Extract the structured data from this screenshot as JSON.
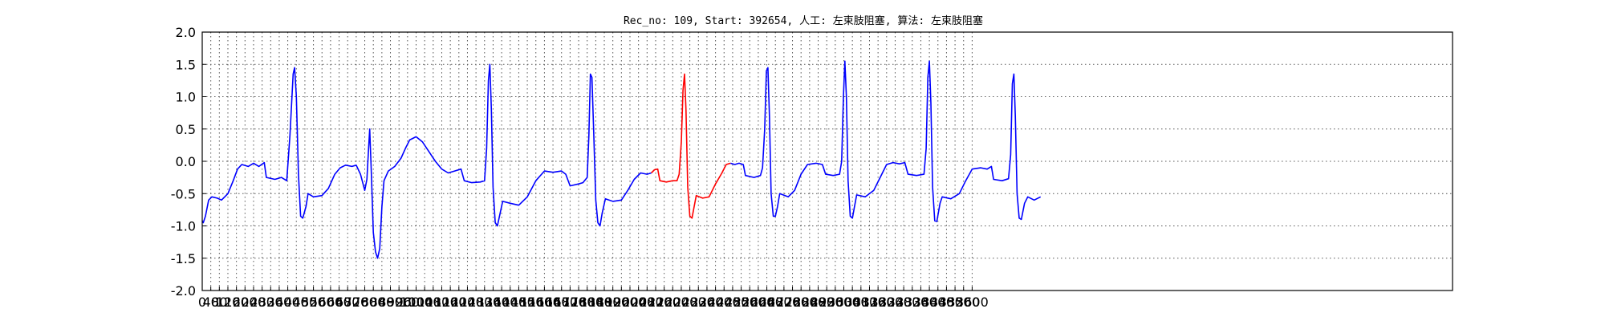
{
  "chart_data": {
    "type": "line",
    "title": "Rec_no: 109, Start: 392654, 人工: 左束肢阻塞, 算法: 左束肢阻塞",
    "xlabel": "",
    "ylabel": "",
    "xlim": [
      0,
      3900
    ],
    "ylim": [
      -2.0,
      2.0
    ],
    "grid": true,
    "x_ticks": [
      0,
      40,
      80,
      120,
      160,
      200,
      240,
      280,
      320,
      360,
      400,
      440,
      480,
      520,
      560,
      600,
      640,
      680,
      720,
      760,
      800,
      840,
      880,
      920,
      960,
      1000,
      1040,
      1080,
      1120,
      1160,
      1200,
      1240,
      1280,
      1320,
      1360,
      1400,
      1440,
      1480,
      1520,
      1560,
      1600,
      1640,
      1680,
      1720,
      1760,
      1800,
      1840,
      1880,
      1920,
      1960,
      2000,
      2040,
      2080,
      2120,
      2160,
      2200,
      2240,
      2280,
      2320,
      2360,
      2400,
      2440,
      2480,
      2520,
      2560,
      2600,
      2640,
      2680,
      2720,
      2760,
      2800,
      2840,
      2880,
      2920,
      2960,
      3000,
      3040,
      3080,
      3120,
      3160,
      3200,
      3240,
      3280,
      3320,
      3360,
      3400,
      3440,
      3480,
      3520,
      3560,
      3600
    ],
    "y_ticks": [
      "-2.0",
      "-1.5",
      "-1.0",
      "-0.5",
      "0.0",
      "0.5",
      "1.0",
      "1.5",
      "2.0"
    ],
    "series": [
      {
        "color": "#0000ff",
        "points": [
          [
            0,
            -0.92
          ],
          [
            5,
            -0.95
          ],
          [
            15,
            -0.85
          ],
          [
            30,
            -0.6
          ],
          [
            45,
            -0.55
          ],
          [
            70,
            -0.57
          ],
          [
            90,
            -0.6
          ],
          [
            120,
            -0.5
          ],
          [
            145,
            -0.3
          ],
          [
            165,
            -0.12
          ],
          [
            185,
            -0.05
          ],
          [
            215,
            -0.08
          ],
          [
            240,
            -0.03
          ],
          [
            265,
            -0.08
          ],
          [
            290,
            -0.02
          ],
          [
            300,
            -0.25
          ],
          [
            340,
            -0.28
          ],
          [
            370,
            -0.25
          ],
          [
            395,
            -0.3
          ],
          [
            410,
            0.4
          ],
          [
            425,
            1.35
          ],
          [
            432,
            1.45
          ],
          [
            440,
            1.0
          ],
          [
            450,
            -0.2
          ],
          [
            460,
            -0.85
          ],
          [
            470,
            -0.88
          ],
          [
            485,
            -0.7
          ],
          [
            495,
            -0.5
          ],
          [
            520,
            -0.55
          ],
          [
            560,
            -0.53
          ],
          [
            590,
            -0.42
          ],
          [
            620,
            -0.2
          ],
          [
            645,
            -0.1
          ],
          [
            670,
            -0.06
          ],
          [
            700,
            -0.08
          ],
          [
            720,
            -0.06
          ],
          [
            740,
            -0.2
          ],
          [
            760,
            -0.45
          ],
          [
            770,
            -0.28
          ],
          [
            778,
            0.2
          ],
          [
            783,
            0.5
          ],
          [
            790,
            -0.1
          ],
          [
            800,
            -1.1
          ],
          [
            810,
            -1.4
          ],
          [
            820,
            -1.5
          ],
          [
            830,
            -1.35
          ],
          [
            840,
            -0.7
          ],
          [
            850,
            -0.3
          ],
          [
            870,
            -0.15
          ],
          [
            900,
            -0.08
          ],
          [
            930,
            0.05
          ],
          [
            950,
            0.2
          ],
          [
            970,
            0.33
          ],
          [
            1000,
            0.38
          ],
          [
            1030,
            0.3
          ],
          [
            1060,
            0.15
          ],
          [
            1090,
            0.0
          ],
          [
            1120,
            -0.12
          ],
          [
            1150,
            -0.18
          ],
          [
            1180,
            -0.15
          ],
          [
            1210,
            -0.12
          ],
          [
            1225,
            -0.3
          ],
          [
            1260,
            -0.33
          ],
          [
            1300,
            -0.32
          ],
          [
            1320,
            -0.3
          ],
          [
            1330,
            0.2
          ],
          [
            1338,
            1.25
          ],
          [
            1345,
            1.5
          ],
          [
            1352,
            0.8
          ],
          [
            1360,
            -0.4
          ],
          [
            1370,
            -0.95
          ],
          [
            1380,
            -1.0
          ],
          [
            1390,
            -0.85
          ],
          [
            1405,
            -0.62
          ],
          [
            1440,
            -0.65
          ],
          [
            1480,
            -0.68
          ],
          [
            1520,
            -0.55
          ],
          [
            1560,
            -0.3
          ],
          [
            1600,
            -0.15
          ],
          [
            1640,
            -0.17
          ],
          [
            1680,
            -0.15
          ],
          [
            1700,
            -0.2
          ],
          [
            1720,
            -0.38
          ],
          [
            1760,
            -0.35
          ],
          [
            1780,
            -0.33
          ],
          [
            1800,
            -0.25
          ],
          [
            1808,
            0.4
          ],
          [
            1815,
            1.35
          ],
          [
            1822,
            1.3
          ],
          [
            1830,
            0.5
          ],
          [
            1840,
            -0.6
          ],
          [
            1850,
            -0.95
          ],
          [
            1860,
            -1.0
          ],
          [
            1870,
            -0.8
          ],
          [
            1885,
            -0.58
          ],
          [
            1920,
            -0.62
          ],
          [
            1960,
            -0.6
          ],
          [
            1990,
            -0.45
          ],
          [
            2020,
            -0.28
          ],
          [
            2050,
            -0.18
          ],
          [
            2080,
            -0.2
          ],
          [
            2100,
            -0.18
          ]
        ]
      },
      {
        "color": "#ff0000",
        "points": [
          [
            2100,
            -0.18
          ],
          [
            2115,
            -0.13
          ],
          [
            2130,
            -0.12
          ],
          [
            2140,
            -0.3
          ],
          [
            2170,
            -0.32
          ],
          [
            2200,
            -0.3
          ],
          [
            2220,
            -0.3
          ],
          [
            2230,
            -0.2
          ],
          [
            2240,
            0.3
          ],
          [
            2248,
            1.1
          ],
          [
            2255,
            1.35
          ],
          [
            2262,
            0.8
          ],
          [
            2270,
            -0.4
          ],
          [
            2280,
            -0.85
          ],
          [
            2290,
            -0.88
          ],
          [
            2300,
            -0.7
          ],
          [
            2310,
            -0.53
          ],
          [
            2340,
            -0.57
          ],
          [
            2370,
            -0.55
          ],
          [
            2400,
            -0.35
          ],
          [
            2430,
            -0.18
          ],
          [
            2450,
            -0.05
          ],
          [
            2470,
            -0.03
          ]
        ]
      },
      {
        "color": "#0000ff",
        "points": [
          [
            2470,
            -0.03
          ],
          [
            2490,
            -0.05
          ],
          [
            2510,
            -0.03
          ],
          [
            2530,
            -0.05
          ],
          [
            2540,
            -0.22
          ],
          [
            2580,
            -0.25
          ],
          [
            2610,
            -0.22
          ],
          [
            2620,
            -0.1
          ],
          [
            2630,
            0.5
          ],
          [
            2638,
            1.4
          ],
          [
            2645,
            1.45
          ],
          [
            2652,
            0.7
          ],
          [
            2660,
            -0.5
          ],
          [
            2670,
            -0.85
          ],
          [
            2680,
            -0.85
          ],
          [
            2690,
            -0.7
          ],
          [
            2700,
            -0.5
          ],
          [
            2740,
            -0.55
          ],
          [
            2770,
            -0.45
          ],
          [
            2800,
            -0.2
          ],
          [
            2830,
            -0.05
          ],
          [
            2870,
            -0.03
          ],
          [
            2900,
            -0.05
          ],
          [
            2915,
            -0.2
          ],
          [
            2950,
            -0.22
          ],
          [
            2980,
            -0.2
          ],
          [
            2990,
            0.0
          ],
          [
            2998,
            1.0
          ],
          [
            3005,
            1.55
          ],
          [
            3012,
            1.0
          ],
          [
            3020,
            -0.3
          ],
          [
            3030,
            -0.85
          ],
          [
            3040,
            -0.88
          ],
          [
            3050,
            -0.7
          ],
          [
            3060,
            -0.52
          ],
          [
            3100,
            -0.55
          ],
          [
            3140,
            -0.45
          ],
          [
            3170,
            -0.25
          ],
          [
            3200,
            -0.05
          ],
          [
            3230,
            -0.02
          ],
          [
            3260,
            -0.04
          ],
          [
            3285,
            -0.02
          ],
          [
            3300,
            -0.2
          ],
          [
            3340,
            -0.22
          ],
          [
            3375,
            -0.2
          ],
          [
            3385,
            0.2
          ],
          [
            3393,
            1.3
          ],
          [
            3400,
            1.55
          ],
          [
            3407,
            0.9
          ],
          [
            3415,
            -0.4
          ],
          [
            3425,
            -0.92
          ],
          [
            3435,
            -0.93
          ],
          [
            3450,
            -0.65
          ],
          [
            3460,
            -0.55
          ],
          [
            3500,
            -0.58
          ],
          [
            3540,
            -0.5
          ],
          [
            3570,
            -0.3
          ],
          [
            3600,
            -0.12
          ],
          [
            3640,
            -0.1
          ],
          [
            3670,
            -0.12
          ],
          [
            3690,
            -0.08
          ],
          [
            3700,
            -0.28
          ],
          [
            3740,
            -0.3
          ],
          [
            3770,
            -0.27
          ],
          [
            3780,
            0.1
          ],
          [
            3788,
            1.2
          ],
          [
            3795,
            1.35
          ],
          [
            3802,
            0.7
          ],
          [
            3810,
            -0.5
          ],
          [
            3820,
            -0.88
          ],
          [
            3830,
            -0.9
          ],
          [
            3845,
            -0.65
          ],
          [
            3860,
            -0.55
          ],
          [
            3890,
            -0.6
          ],
          [
            3920,
            -0.55
          ]
        ]
      },
      {
        "color": "#0000ff",
        "points": [
          [
            3920,
            -0.55
          ]
        ]
      }
    ]
  }
}
